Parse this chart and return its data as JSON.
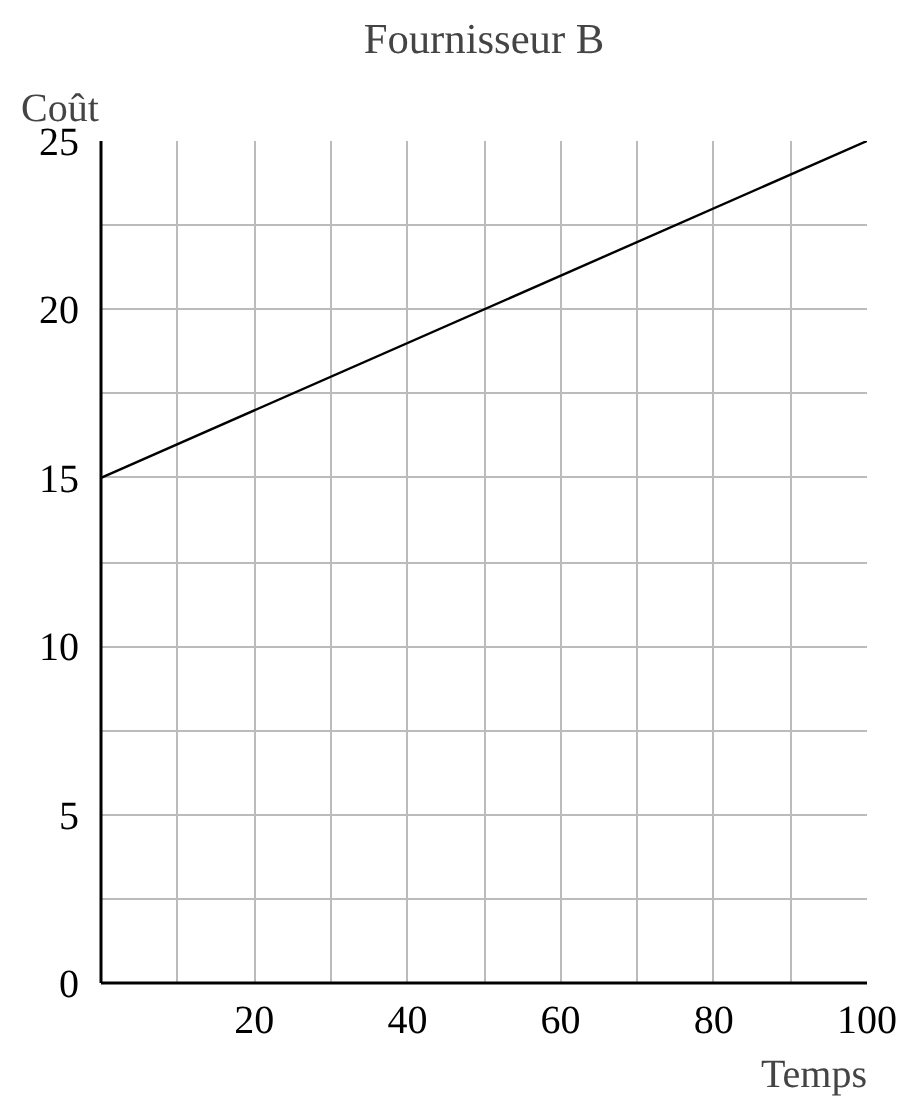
{
  "chart_data": {
    "type": "line",
    "title": "Fournisseur B",
    "xlabel": "Temps",
    "ylabel": "Coût",
    "x": [
      0,
      100
    ],
    "values": [
      15,
      25
    ],
    "color": "#000000",
    "xlim": [
      0,
      100
    ],
    "ylim": [
      0,
      25
    ],
    "xticks": [
      {
        "value": 10,
        "label": null
      },
      20,
      {
        "value": 30,
        "label": null
      },
      40,
      {
        "value": 50,
        "label": null
      },
      60,
      {
        "value": 70,
        "label": null
      },
      80,
      {
        "value": 90,
        "label": null
      },
      100
    ],
    "yticks": [
      0,
      {
        "value": 2.5,
        "label": null
      },
      5,
      {
        "value": 7.5,
        "label": null
      },
      10,
      {
        "value": 12.5,
        "label": null
      },
      15,
      {
        "value": 17.5,
        "label": null
      },
      20,
      {
        "value": 22.5,
        "label": null
      },
      25
    ],
    "grid": true
  }
}
